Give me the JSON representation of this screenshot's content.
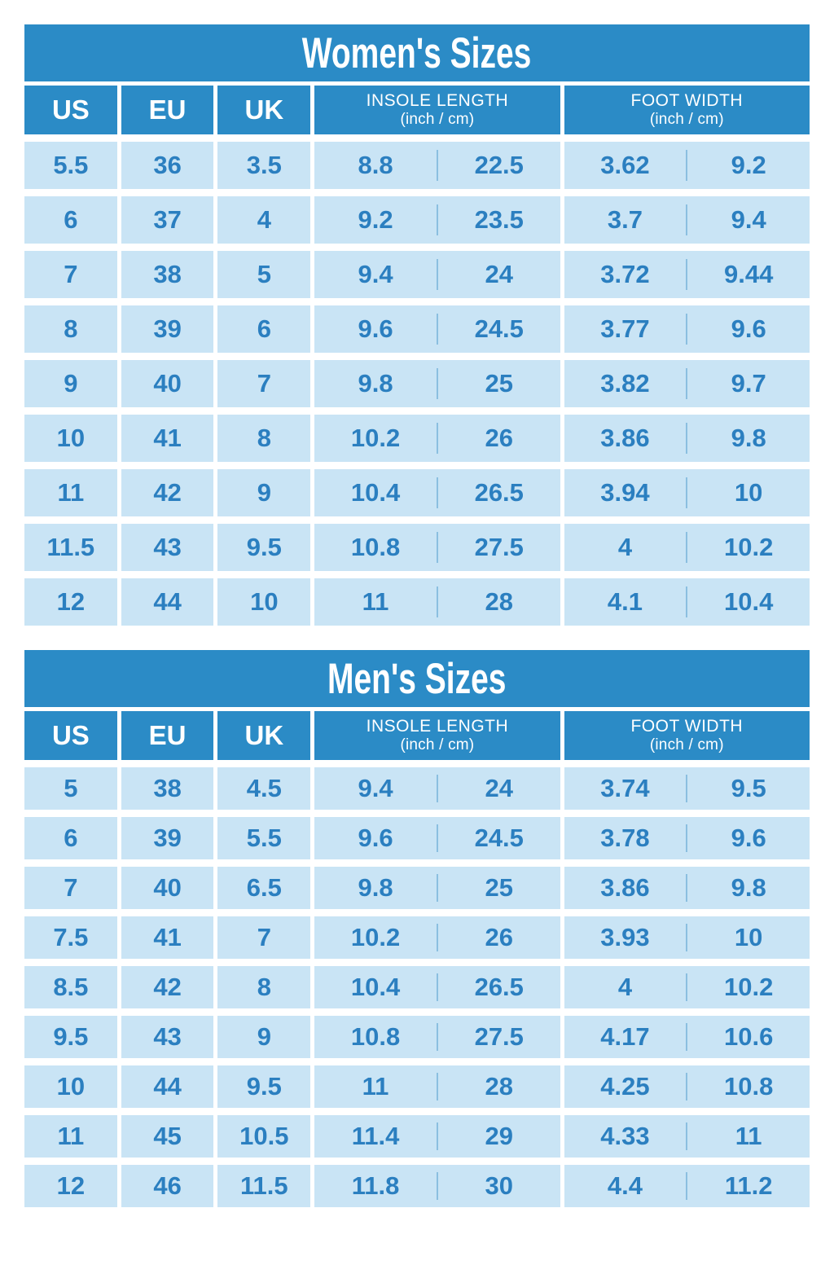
{
  "colors": {
    "header_blue": "#2b8bc6",
    "cell_light_blue": "#c9e4f5",
    "value_text_blue": "#2b7fc0",
    "divider_blue": "#8bbfe0",
    "background": "#ffffff",
    "header_text": "#ffffff"
  },
  "chart_data": [
    {
      "type": "table",
      "title": "Women's Sizes",
      "columns": {
        "us": "US",
        "eu": "EU",
        "uk": "UK",
        "insole_label": "INSOLE LENGTH",
        "insole_sub": "(inch / cm)",
        "foot_label": "FOOT WIDTH",
        "foot_sub": "(inch / cm)"
      },
      "rows": [
        {
          "us": "5.5",
          "eu": "36",
          "uk": "3.5",
          "insole_in": "8.8",
          "insole_cm": "22.5",
          "width_in": "3.62",
          "width_cm": "9.2"
        },
        {
          "us": "6",
          "eu": "37",
          "uk": "4",
          "insole_in": "9.2",
          "insole_cm": "23.5",
          "width_in": "3.7",
          "width_cm": "9.4"
        },
        {
          "us": "7",
          "eu": "38",
          "uk": "5",
          "insole_in": "9.4",
          "insole_cm": "24",
          "width_in": "3.72",
          "width_cm": "9.44"
        },
        {
          "us": "8",
          "eu": "39",
          "uk": "6",
          "insole_in": "9.6",
          "insole_cm": "24.5",
          "width_in": "3.77",
          "width_cm": "9.6"
        },
        {
          "us": "9",
          "eu": "40",
          "uk": "7",
          "insole_in": "9.8",
          "insole_cm": "25",
          "width_in": "3.82",
          "width_cm": "9.7"
        },
        {
          "us": "10",
          "eu": "41",
          "uk": "8",
          "insole_in": "10.2",
          "insole_cm": "26",
          "width_in": "3.86",
          "width_cm": "9.8"
        },
        {
          "us": "11",
          "eu": "42",
          "uk": "9",
          "insole_in": "10.4",
          "insole_cm": "26.5",
          "width_in": "3.94",
          "width_cm": "10"
        },
        {
          "us": "11.5",
          "eu": "43",
          "uk": "9.5",
          "insole_in": "10.8",
          "insole_cm": "27.5",
          "width_in": "4",
          "width_cm": "10.2"
        },
        {
          "us": "12",
          "eu": "44",
          "uk": "10",
          "insole_in": "11",
          "insole_cm": "28",
          "width_in": "4.1",
          "width_cm": "10.4"
        }
      ]
    },
    {
      "type": "table",
      "title": "Men's Sizes",
      "columns": {
        "us": "US",
        "eu": "EU",
        "uk": "UK",
        "insole_label": "INSOLE LENGTH",
        "insole_sub": "(inch / cm)",
        "foot_label": "FOOT WIDTH",
        "foot_sub": "(inch / cm)"
      },
      "rows": [
        {
          "us": "5",
          "eu": "38",
          "uk": "4.5",
          "insole_in": "9.4",
          "insole_cm": "24",
          "width_in": "3.74",
          "width_cm": "9.5"
        },
        {
          "us": "6",
          "eu": "39",
          "uk": "5.5",
          "insole_in": "9.6",
          "insole_cm": "24.5",
          "width_in": "3.78",
          "width_cm": "9.6"
        },
        {
          "us": "7",
          "eu": "40",
          "uk": "6.5",
          "insole_in": "9.8",
          "insole_cm": "25",
          "width_in": "3.86",
          "width_cm": "9.8"
        },
        {
          "us": "7.5",
          "eu": "41",
          "uk": "7",
          "insole_in": "10.2",
          "insole_cm": "26",
          "width_in": "3.93",
          "width_cm": "10"
        },
        {
          "us": "8.5",
          "eu": "42",
          "uk": "8",
          "insole_in": "10.4",
          "insole_cm": "26.5",
          "width_in": "4",
          "width_cm": "10.2"
        },
        {
          "us": "9.5",
          "eu": "43",
          "uk": "9",
          "insole_in": "10.8",
          "insole_cm": "27.5",
          "width_in": "4.17",
          "width_cm": "10.6"
        },
        {
          "us": "10",
          "eu": "44",
          "uk": "9.5",
          "insole_in": "11",
          "insole_cm": "28",
          "width_in": "4.25",
          "width_cm": "10.8"
        },
        {
          "us": "11",
          "eu": "45",
          "uk": "10.5",
          "insole_in": "11.4",
          "insole_cm": "29",
          "width_in": "4.33",
          "width_cm": "11"
        },
        {
          "us": "12",
          "eu": "46",
          "uk": "11.5",
          "insole_in": "11.8",
          "insole_cm": "30",
          "width_in": "4.4",
          "width_cm": "11.2"
        }
      ]
    }
  ]
}
